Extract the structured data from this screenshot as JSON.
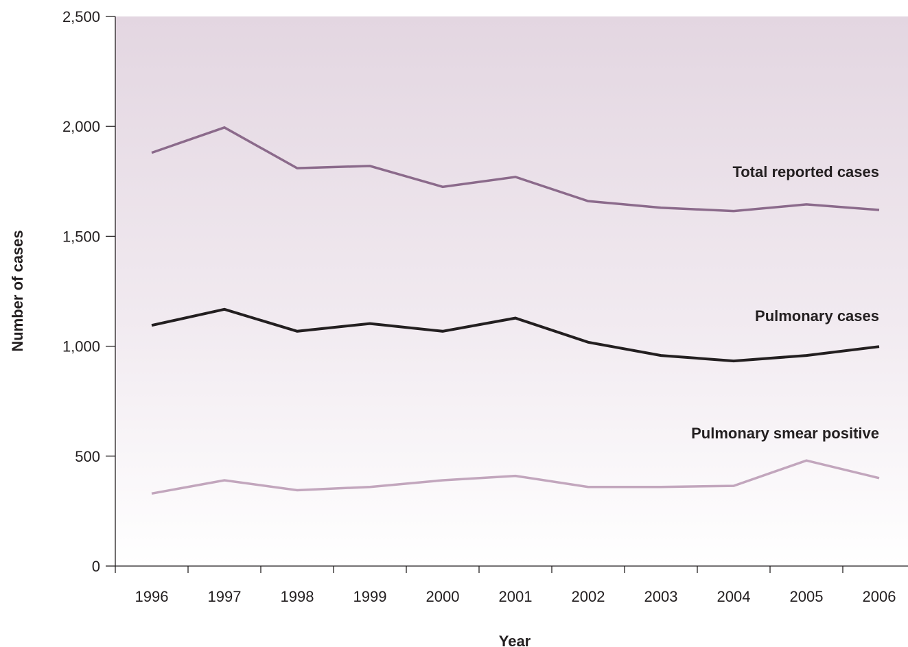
{
  "chart_data": {
    "type": "line",
    "title": "",
    "xlabel": "Year",
    "ylabel": "Number of cases",
    "x": [
      "1996",
      "1997",
      "1998",
      "1999",
      "2000",
      "2001",
      "2002",
      "2003",
      "2004",
      "2005",
      "2006"
    ],
    "ylim": [
      0,
      2500
    ],
    "yticks": [
      0,
      500,
      1000,
      1500,
      2000,
      2500
    ],
    "ytick_labels": [
      "0",
      "500",
      "1,000",
      "1,500",
      "2,000",
      "2,500"
    ],
    "grid": false,
    "legend": "inline labels at right end of each line",
    "background": "gradient from #e3d6e1 (top) to #ffffff (bottom)",
    "series": [
      {
        "name": "Total reported cases",
        "color": "#8b6a8b",
        "values": [
          1880,
          1995,
          1810,
          1820,
          1725,
          1770,
          1660,
          1630,
          1615,
          1645,
          1620
        ]
      },
      {
        "name": "Pulmonary cases",
        "color": "#231f20",
        "values": [
          1095,
          1168,
          1068,
          1103,
          1068,
          1128,
          1018,
          958,
          933,
          958,
          998
        ]
      },
      {
        "name": "Pulmonary smear positive",
        "color": "#c2a6bd",
        "values": [
          330,
          390,
          345,
          360,
          390,
          410,
          360,
          360,
          365,
          480,
          400
        ]
      }
    ]
  }
}
